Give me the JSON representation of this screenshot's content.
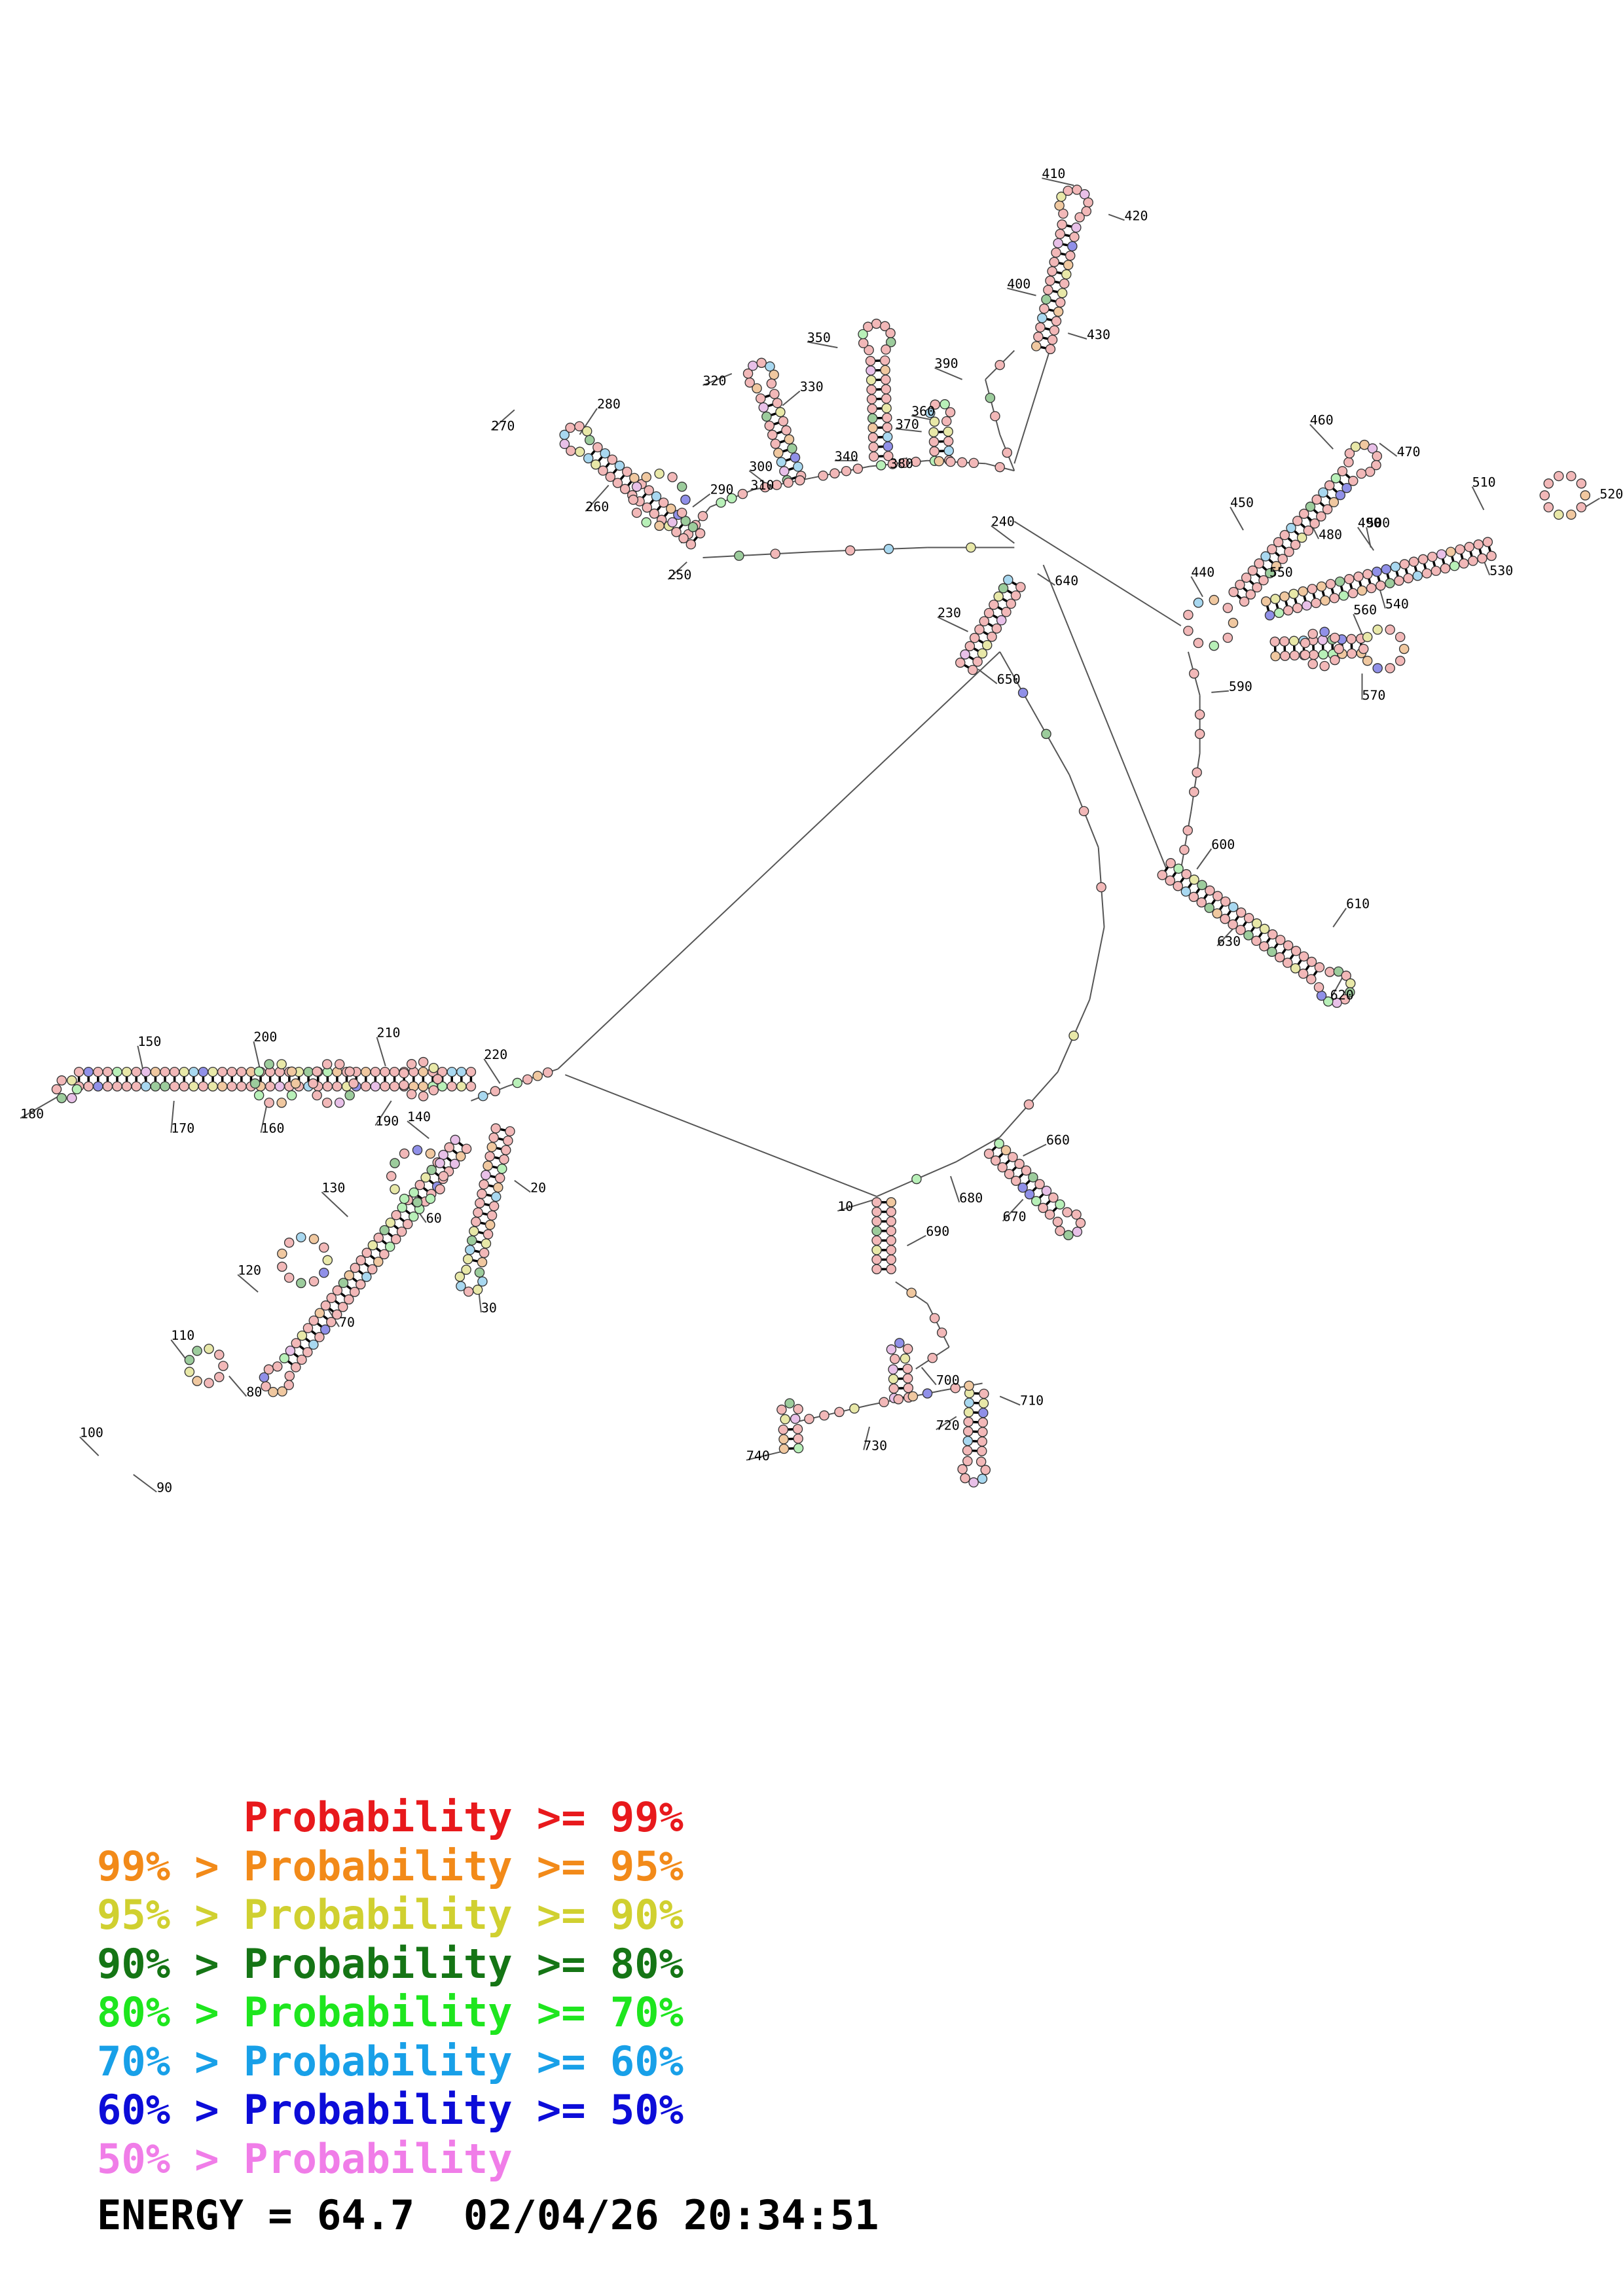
{
  "legend": [
    {
      "prefix": "      ",
      "label": "Probability >= 99%",
      "color": "#e8191c"
    },
    {
      "prefix": "99% > ",
      "label": "Probability >= 95%",
      "color": "#f28a19"
    },
    {
      "prefix": "95% > ",
      "label": "Probability >= 90%",
      "color": "#d0d030"
    },
    {
      "prefix": "90% > ",
      "label": "Probability >= 80%",
      "color": "#157515"
    },
    {
      "prefix": "80% > ",
      "label": "Probability >= 70%",
      "color": "#1ee61e"
    },
    {
      "prefix": "70% > ",
      "label": "Probability >= 60%",
      "color": "#18a0e8"
    },
    {
      "prefix": "60% > ",
      "label": "Probability >= 50%",
      "color": "#0c0cd8"
    },
    {
      "prefix": "50% > ",
      "label": "Probability",
      "color": "#f07de8"
    }
  ],
  "energy": "ENERGY = 64.7  02/04/26 20:34:51",
  "position_labels": [
    "10",
    "20",
    "30",
    "60",
    "70",
    "80",
    "90",
    "100",
    "110",
    "120",
    "130",
    "140",
    "150",
    "160",
    "170",
    "180",
    "190",
    "200",
    "210",
    "220",
    "230",
    "240",
    "250",
    "260",
    "270",
    "280",
    "290",
    "300",
    "310",
    "320",
    "330",
    "340",
    "350",
    "360",
    "370",
    "380",
    "390",
    "400",
    "410",
    "420",
    "430",
    "440",
    "450",
    "460",
    "470",
    "480",
    "490",
    "500",
    "510",
    "520",
    "530",
    "540",
    "550",
    "560",
    "570",
    "590",
    "600",
    "610",
    "620",
    "630",
    "640",
    "650",
    "660",
    "670",
    "680",
    "690",
    "700",
    "710",
    "720",
    "730",
    "740"
  ],
  "nucleotide_palette": [
    "#f2b8b8",
    "#f0c8a0",
    "#e8e8a8",
    "#9ccc9c",
    "#b8f0b8",
    "#a8d8f0",
    "#9090e8",
    "#e8c0e8"
  ]
}
